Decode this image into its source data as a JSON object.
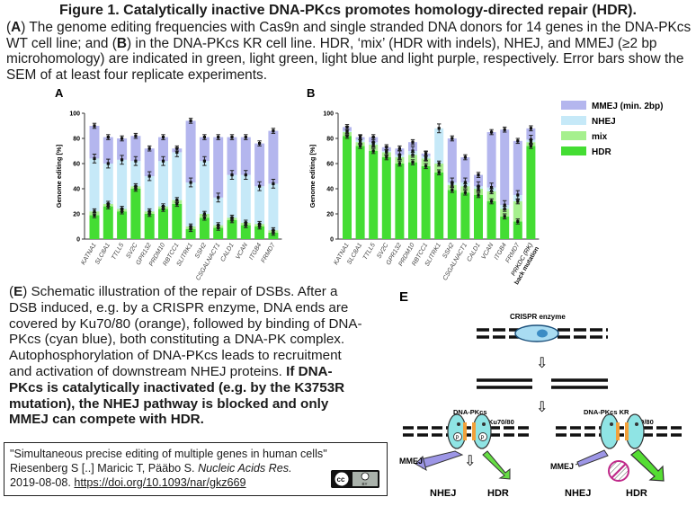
{
  "title": "Figure 1. Catalytically inactive DNA-PKcs promotes homology-directed repair (HDR).",
  "caption": {
    "p1_open": "(",
    "p1_A": "A",
    "p1_text1": ") The genome editing frequencies with Cas9n and single stranded DNA donors for 14 genes in the DNA-PKcs WT cell line; and (",
    "p1_B": "B",
    "p1_text2": ") in the DNA-PKcs KR cell line. HDR, ‘mix’ (HDR with indels), NHEJ, and MMEJ (≥2 bp microhomology) are indicated in green, light green, light blue and light purple, respectively. Error bars show the SEM of at least four replicate experiments."
  },
  "colors": {
    "hdr": "#44dd33",
    "mix": "#a6f08e",
    "nhej": "#c6e9f8",
    "mmej": "#b4b6ee"
  },
  "legend": [
    "MMEJ (min. 2bp)",
    "NHEJ",
    "mix",
    "HDR"
  ],
  "chart_data": [
    {
      "type": "bar",
      "panel": "A",
      "stacked": true,
      "ylabel": "Genome editing [%]",
      "ylim": [
        0,
        100
      ],
      "yticks": [
        0,
        20,
        40,
        60,
        80,
        100
      ],
      "categories": [
        "KATNA1",
        "SLC8A1",
        "TTLL5",
        "SV2C",
        "GPR132",
        "PRDM10",
        "RBTCC1",
        "SLITRK1",
        "SSH2",
        "CSGALNACT1",
        "CALD1",
        "VCAN",
        "ITGB4",
        "FRMD7"
      ],
      "series": [
        {
          "name": "HDR",
          "values": [
            19,
            26,
            22,
            40,
            20,
            24,
            28,
            8,
            17,
            9,
            15,
            11,
            10,
            5
          ]
        },
        {
          "name": "mix",
          "values": [
            3,
            2,
            2,
            2,
            2,
            2,
            3,
            2,
            3,
            2,
            2,
            2,
            2,
            2
          ]
        },
        {
          "name": "NHEJ",
          "values": [
            42,
            32,
            39,
            20,
            28,
            36,
            38,
            35,
            42,
            22,
            34,
            38,
            30,
            37
          ]
        },
        {
          "name": "MMEJ",
          "values": [
            26,
            21,
            17,
            20,
            22,
            19,
            3,
            49,
            19,
            48,
            30,
            30,
            34,
            42
          ]
        }
      ]
    },
    {
      "type": "bar",
      "panel": "B",
      "stacked": true,
      "ylabel": "Genome editing [%]",
      "ylim": [
        0,
        100
      ],
      "yticks": [
        0,
        20,
        40,
        60,
        80,
        100
      ],
      "categories": [
        "KATNA1",
        "SLC8A1",
        "TTLL5",
        "SV2C",
        "GPR132",
        "PRDM10",
        "RBTCC1",
        "SLITRK1",
        "SSH2",
        "CSGALNACT1",
        "CALD1",
        "VCAN",
        "ITGB4",
        "FRMD7",
        "PRKDC (RK) back mutation"
      ],
      "series": [
        {
          "name": "HDR",
          "values": [
            82,
            74,
            70,
            65,
            60,
            61,
            58,
            53,
            39,
            37,
            35,
            30,
            18,
            14,
            74
          ]
        },
        {
          "name": "mix",
          "values": [
            3,
            3,
            5,
            4,
            5,
            6,
            6,
            7,
            4,
            5,
            5,
            8,
            6,
            16,
            3
          ]
        },
        {
          "name": "NHEJ",
          "values": [
            1,
            2,
            2,
            1,
            2,
            3,
            2,
            28,
            2,
            3,
            2,
            3,
            3,
            5,
            2
          ]
        },
        {
          "name": "MMEJ",
          "values": [
            3,
            2,
            4,
            3,
            5,
            7,
            2,
            0,
            35,
            20,
            9,
            44,
            60,
            43,
            9
          ]
        }
      ]
    }
  ],
  "panel_labels": {
    "a": "A",
    "b": "B",
    "e": "E"
  },
  "description": {
    "open": "(",
    "E": "E",
    "text": ") Schematic illustration of the repair of DSBs. After a DSB induced, e.g. by a CRISPR enzyme, DNA ends are covered by Ku70/80 (orange), followed by binding of DNA-PKcs (cyan blue), both constituting a DNA-PK complex. Autophosphorylation of DNA-PKcs leads to recruitment and activation of downstream NHEJ proteins. ",
    "bold": "If DNA-PKcs is catalytically inactivated (e.g. by the K3753R mutation), the NHEJ pathway is blocked and only MMEJ can compete with HDR."
  },
  "schematic": {
    "crispr": "CRISPR enzyme",
    "dnapkcs": "DNA-PKcs",
    "dnapkcs_kr": "DNA-PKcs KR",
    "ku": "Ku70/80",
    "p": "P",
    "mmej": "MMEJ",
    "nhej": "NHEJ",
    "hdr": "HDR"
  },
  "citation": {
    "line1": "\"Simultaneous precise editing of multiple genes in human cells\"",
    "authors": "Riesenberg S [..] Maricic T, Pääbo S. ",
    "journal": "Nucleic Acids Res.",
    "date": "2019-08-08. ",
    "doi": "https://doi.org/10.1093/nar/gkz669",
    "license_cc": "cc",
    "license_by": "BY"
  }
}
